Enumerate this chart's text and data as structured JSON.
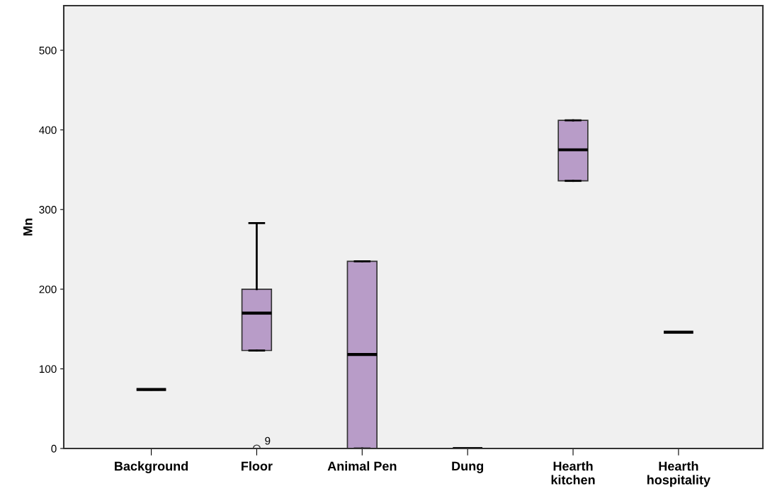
{
  "chart_data": {
    "type": "box",
    "ylabel": "Mn",
    "categories": [
      "Background",
      "Floor",
      "Animal Pen",
      "Dung",
      "Hearth\nkitchen",
      "Hearth\nhospitality"
    ],
    "boxes": [
      {
        "low": 74,
        "q1": 74,
        "median": 74,
        "q3": 74,
        "high": 74
      },
      {
        "low": 123,
        "q1": 123,
        "median": 170,
        "q3": 200,
        "high": 283,
        "outliers": [
          0
        ]
      },
      {
        "low": 0,
        "q1": 0,
        "median": 118,
        "q3": 235,
        "high": 235
      },
      {
        "low": 0,
        "q1": 0,
        "median": 0,
        "q3": 0,
        "high": 0
      },
      {
        "low": 336,
        "q1": 336,
        "median": 375,
        "q3": 412,
        "high": 412
      },
      {
        "low": 146,
        "q1": 146,
        "median": 146,
        "q3": 146,
        "high": 146
      }
    ],
    "color": "#b89cc8",
    "ylim": [
      0,
      556
    ],
    "yticks": [
      0,
      100,
      200,
      300,
      400,
      500
    ],
    "grid": false,
    "annotations": [
      "9"
    ]
  }
}
